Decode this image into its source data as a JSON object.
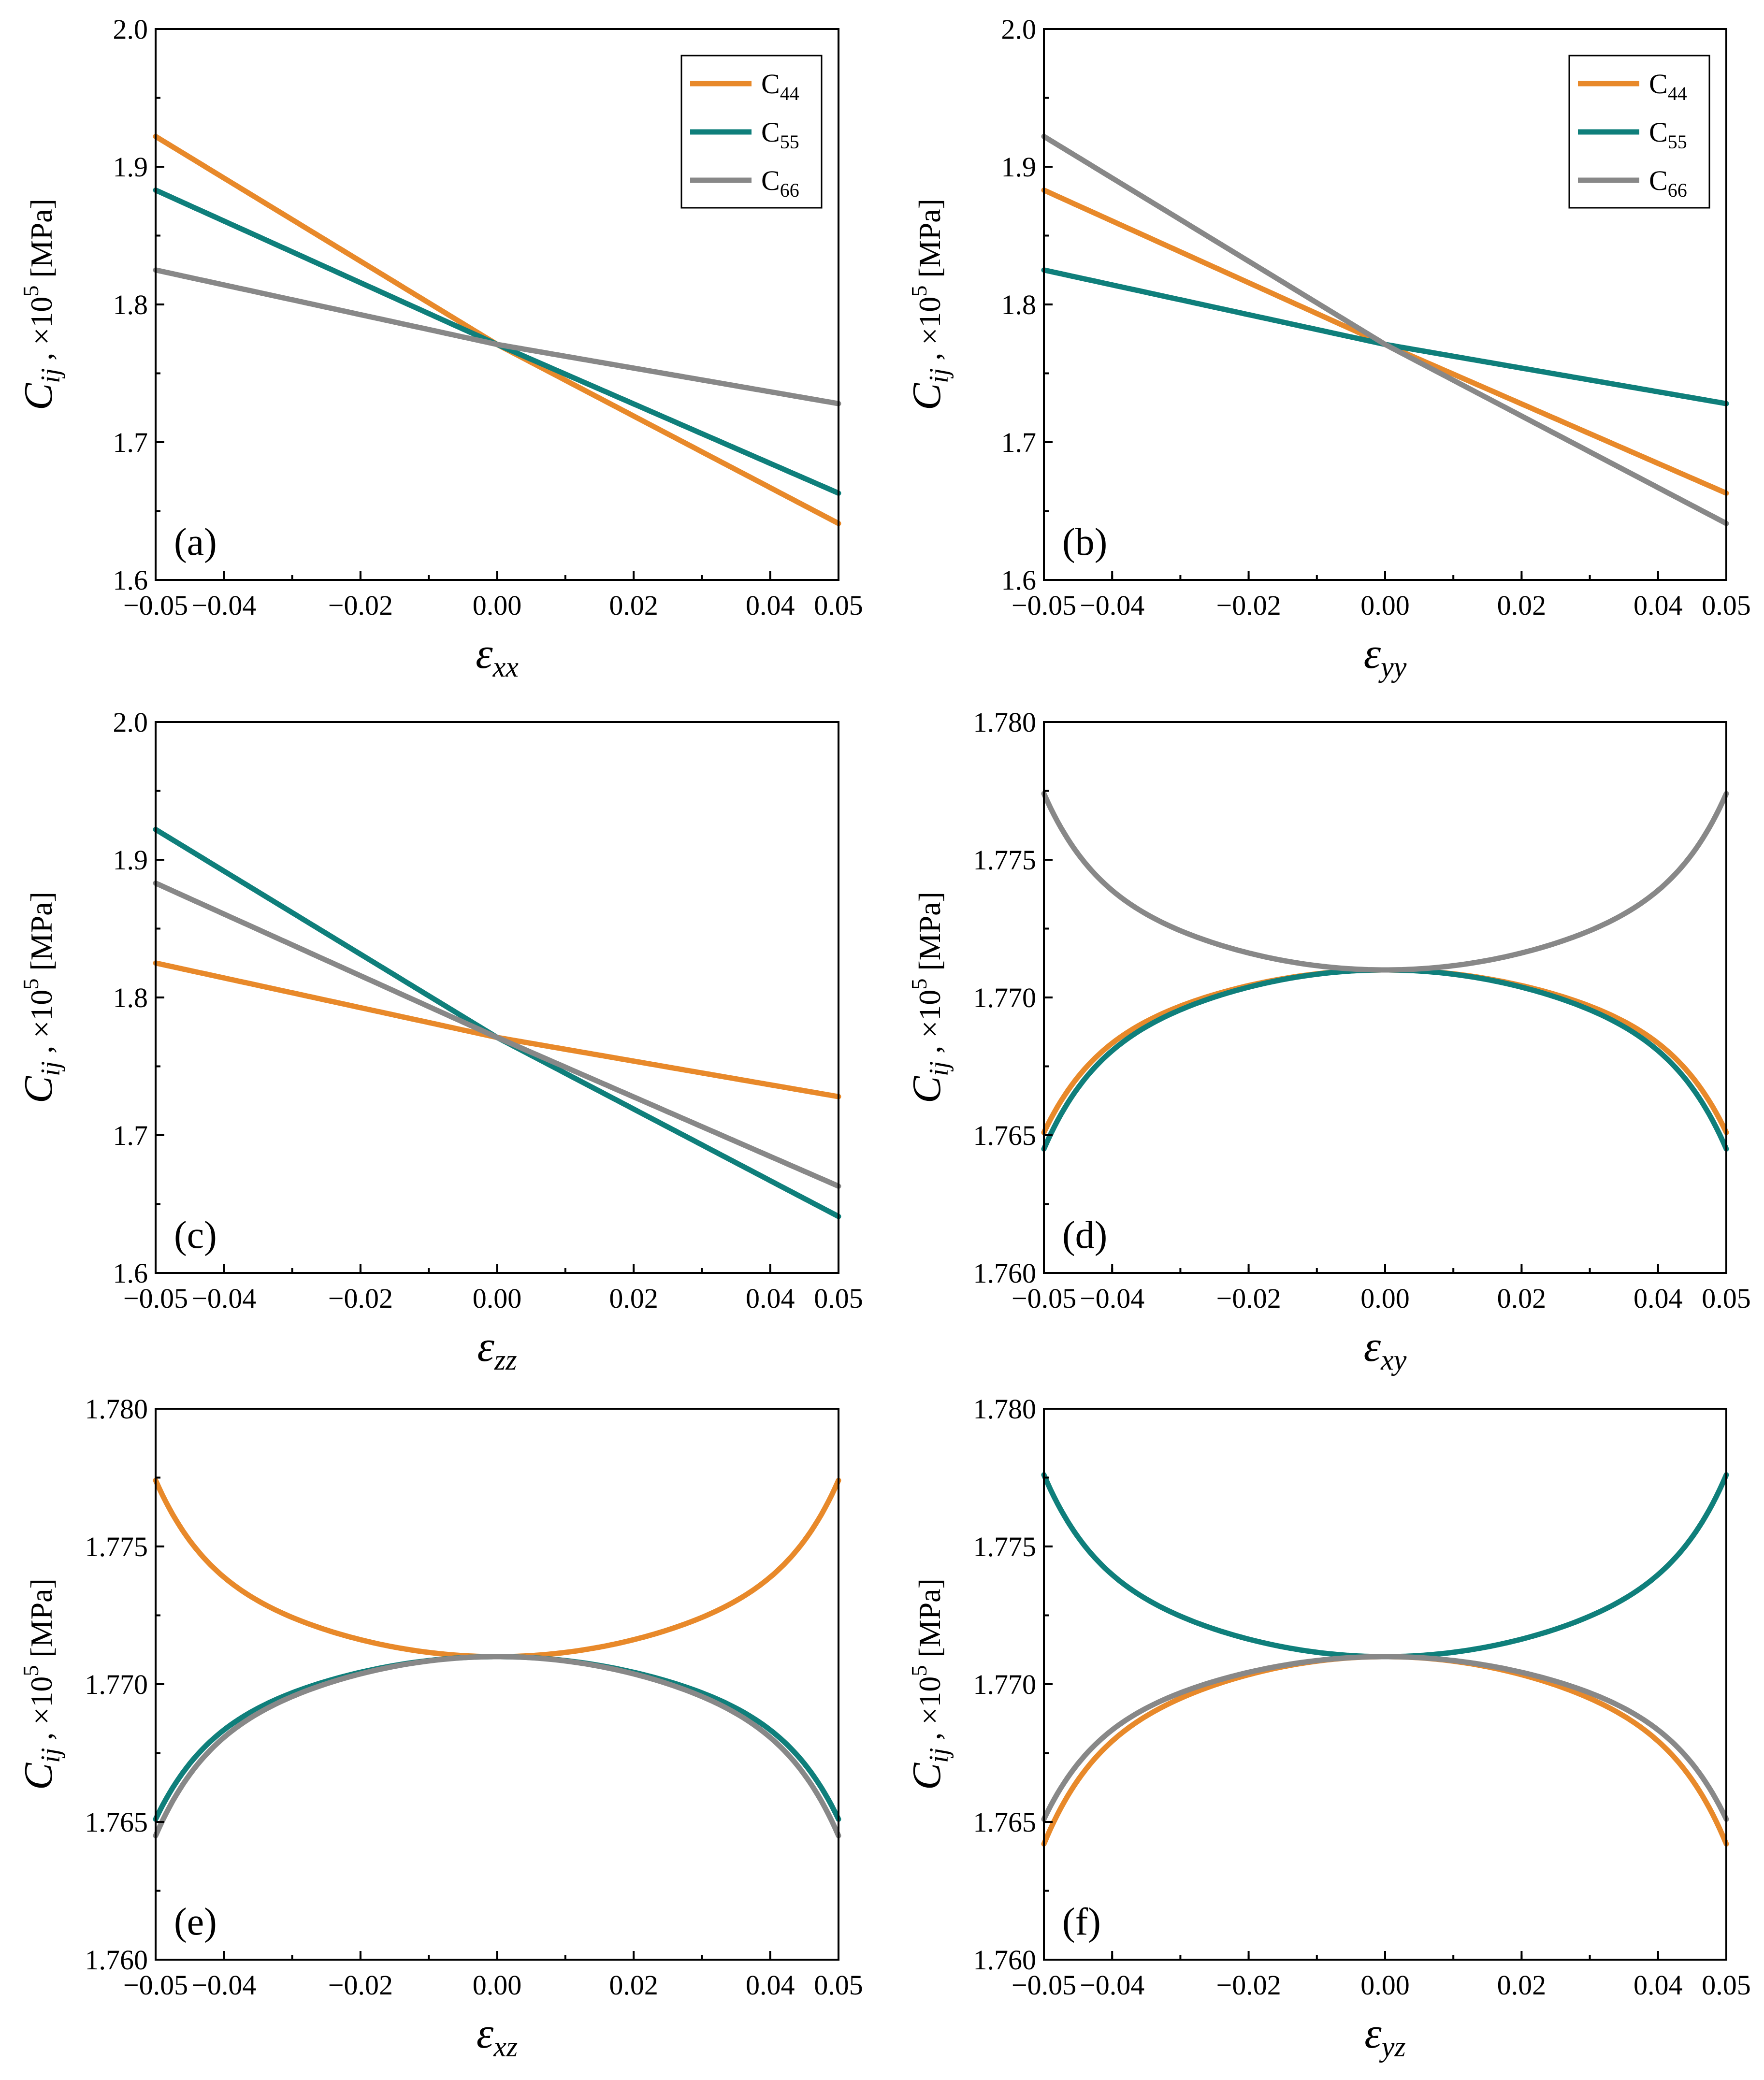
{
  "figure": {
    "colors": {
      "C44": "#e8892a",
      "C55": "#0f7f7b",
      "C66": "#888888"
    },
    "legend_entries": [
      {
        "key": "C44",
        "base": "C",
        "sub": "44"
      },
      {
        "key": "C55",
        "base": "C",
        "sub": "55"
      },
      {
        "key": "C66",
        "base": "C",
        "sub": "66"
      }
    ],
    "ylabel": {
      "base": "C",
      "sub": "ij",
      "mid": " ,  ×10",
      "sup": "5",
      "unit": " [MPa]"
    }
  },
  "chart_data": [
    {
      "type": "line",
      "panel": "(a)",
      "xlabel": {
        "base": "ε",
        "sub": "xx"
      },
      "xlim": [
        -0.05,
        0.05
      ],
      "ylim": [
        1.6,
        2.0
      ],
      "xticks": [
        "−0.05",
        "−0.04",
        "−0.02",
        "0.00",
        "0.02",
        "0.04",
        "0.05"
      ],
      "yticks": [
        "1.6",
        "1.7",
        "1.8",
        "1.9",
        "2.0"
      ],
      "legend": true,
      "legend_position": "top-right",
      "series": [
        {
          "name": "C44",
          "shape": "linear",
          "y0": 1.771,
          "y_left": 1.922,
          "y_right": 1.641
        },
        {
          "name": "C55",
          "shape": "linear",
          "y0": 1.771,
          "y_left": 1.883,
          "y_right": 1.663
        },
        {
          "name": "C66",
          "shape": "linear",
          "y0": 1.771,
          "y_left": 1.825,
          "y_right": 1.728
        }
      ]
    },
    {
      "type": "line",
      "panel": "(b)",
      "xlabel": {
        "base": "ε",
        "sub": "yy"
      },
      "xlim": [
        -0.05,
        0.05
      ],
      "ylim": [
        1.6,
        2.0
      ],
      "xticks": [
        "−0.05",
        "−0.04",
        "−0.02",
        "0.00",
        "0.02",
        "0.04",
        "0.05"
      ],
      "yticks": [
        "1.6",
        "1.7",
        "1.8",
        "1.9",
        "2.0"
      ],
      "legend": true,
      "legend_position": "top-right",
      "series": [
        {
          "name": "C44",
          "shape": "linear",
          "y0": 1.771,
          "y_left": 1.883,
          "y_right": 1.663
        },
        {
          "name": "C55",
          "shape": "linear",
          "y0": 1.771,
          "y_left": 1.825,
          "y_right": 1.728
        },
        {
          "name": "C66",
          "shape": "linear",
          "y0": 1.771,
          "y_left": 1.922,
          "y_right": 1.641
        }
      ]
    },
    {
      "type": "line",
      "panel": "(c)",
      "xlabel": {
        "base": "ε",
        "sub": "zz"
      },
      "xlim": [
        -0.05,
        0.05
      ],
      "ylim": [
        1.6,
        2.0
      ],
      "xticks": [
        "−0.05",
        "−0.04",
        "−0.02",
        "0.00",
        "0.02",
        "0.04",
        "0.05"
      ],
      "yticks": [
        "1.6",
        "1.7",
        "1.8",
        "1.9",
        "2.0"
      ],
      "legend": false,
      "series": [
        {
          "name": "C44",
          "shape": "linear",
          "y0": 1.771,
          "y_left": 1.825,
          "y_right": 1.728
        },
        {
          "name": "C55",
          "shape": "linear",
          "y0": 1.771,
          "y_left": 1.922,
          "y_right": 1.641
        },
        {
          "name": "C66",
          "shape": "linear",
          "y0": 1.771,
          "y_left": 1.883,
          "y_right": 1.663
        }
      ]
    },
    {
      "type": "line",
      "panel": "(d)",
      "xlabel": {
        "base": "ε",
        "sub": "xy"
      },
      "xlim": [
        -0.05,
        0.05
      ],
      "ylim": [
        1.76,
        1.78
      ],
      "xticks": [
        "−0.05",
        "−0.04",
        "−0.02",
        "0.00",
        "0.02",
        "0.04",
        "0.05"
      ],
      "yticks": [
        "1.760",
        "1.765",
        "1.770",
        "1.775",
        "1.780"
      ],
      "legend": false,
      "series": [
        {
          "name": "C44",
          "shape": "dome",
          "y0": 1.771,
          "y_edge": 1.7651
        },
        {
          "name": "C55",
          "shape": "dome",
          "y0": 1.771,
          "y_edge": 1.7645
        },
        {
          "name": "C66",
          "shape": "bowl",
          "y0": 1.771,
          "y_edge": 1.7774
        }
      ]
    },
    {
      "type": "line",
      "panel": "(e)",
      "xlabel": {
        "base": "ε",
        "sub": "xz"
      },
      "xlim": [
        -0.05,
        0.05
      ],
      "ylim": [
        1.76,
        1.78
      ],
      "xticks": [
        "−0.05",
        "−0.04",
        "−0.02",
        "0.00",
        "0.02",
        "0.04",
        "0.05"
      ],
      "yticks": [
        "1.760",
        "1.765",
        "1.770",
        "1.775",
        "1.780"
      ],
      "legend": false,
      "series": [
        {
          "name": "C44",
          "shape": "bowl",
          "y0": 1.771,
          "y_edge": 1.7774
        },
        {
          "name": "C55",
          "shape": "dome",
          "y0": 1.771,
          "y_edge": 1.7651
        },
        {
          "name": "C66",
          "shape": "dome",
          "y0": 1.771,
          "y_edge": 1.7645
        }
      ]
    },
    {
      "type": "line",
      "panel": "(f)",
      "xlabel": {
        "base": "ε",
        "sub": "yz"
      },
      "xlim": [
        -0.05,
        0.05
      ],
      "ylim": [
        1.76,
        1.78
      ],
      "xticks": [
        "−0.05",
        "−0.04",
        "−0.02",
        "0.00",
        "0.02",
        "0.04",
        "0.05"
      ],
      "yticks": [
        "1.760",
        "1.765",
        "1.770",
        "1.775",
        "1.780"
      ],
      "legend": false,
      "series": [
        {
          "name": "C44",
          "shape": "dome",
          "y0": 1.771,
          "y_edge": 1.7642
        },
        {
          "name": "C55",
          "shape": "bowl",
          "y0": 1.771,
          "y_edge": 1.7776
        },
        {
          "name": "C66",
          "shape": "dome",
          "y0": 1.771,
          "y_edge": 1.7651
        }
      ]
    }
  ]
}
